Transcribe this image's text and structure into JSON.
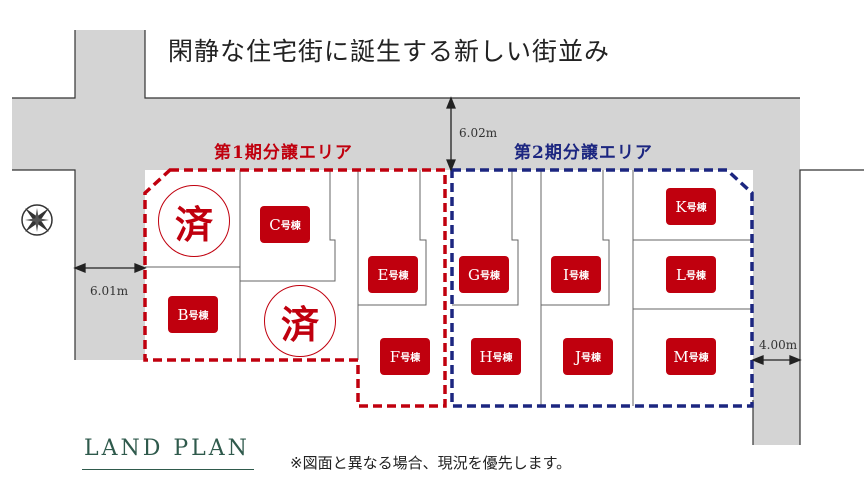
{
  "title": "閑静な住宅街に誕生する新しい街並み",
  "phase1": {
    "label": "第1期分譲エリア",
    "color": "#c0000e"
  },
  "phase2": {
    "label": "第2期分譲エリア",
    "color": "#1c2680"
  },
  "dimensions": {
    "top_road": "6.02m",
    "left_road": "6.01m",
    "right_road": "4.00m"
  },
  "lots": {
    "suffix": "号棟",
    "B": "B",
    "C": "C",
    "E": "E",
    "F": "F",
    "G": "G",
    "H": "H",
    "I": "I",
    "J": "J",
    "K": "K",
    "L": "L",
    "M": "M"
  },
  "sold_mark": "済",
  "compass": "compass-icon",
  "brand": "LAND PLAN",
  "note": "※図面と異なる場合、現況を優先します。"
}
